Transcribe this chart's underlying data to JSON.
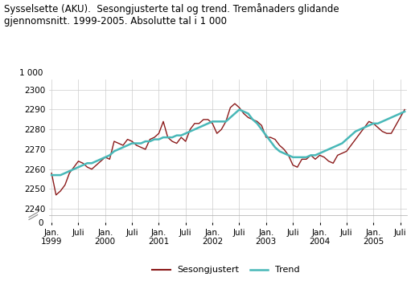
{
  "title": "Sysselsette (AKU).  Sesongjusterte tal og trend. Tremånaders glidande\ngjennomsnitt. 1999-2005. Absolutte tal i 1 000",
  "ylabel_top": "1 000",
  "sesongjustert_color": "#8B1A1A",
  "trend_color": "#48B8B8",
  "legend_sesongjustert": "Sesongjustert",
  "legend_trend": "Trend",
  "background_color": "#ffffff",
  "grid_color": "#cccccc",
  "ylim_main": [
    2237,
    2305
  ],
  "ylim_zero": [
    0,
    10
  ],
  "yticks_main": [
    2240,
    2250,
    2260,
    2270,
    2280,
    2290,
    2300
  ],
  "xtick_positions": [
    0,
    6,
    12,
    18,
    24,
    30,
    36,
    42,
    48,
    54,
    60,
    66,
    72,
    78
  ],
  "xtick_labels": [
    "Jan.\n1999",
    "Juli",
    "Jan.\n2000",
    "Juli",
    "Jan.\n2001",
    "Juli",
    "Jan.\n2002",
    "Juli",
    "Jan.\n2003",
    "Juli",
    "Jan.\n2004",
    "Juli",
    "Jan.\n2005",
    "Juli"
  ],
  "sesongjustert": [
    2258,
    2247,
    2249,
    2252,
    2258,
    2261,
    2264,
    2263,
    2261,
    2260,
    2262,
    2264,
    2266,
    2265,
    2274,
    2273,
    2272,
    2275,
    2274,
    2272,
    2271,
    2270,
    2275,
    2276,
    2278,
    2284,
    2276,
    2274,
    2273,
    2276,
    2274,
    2280,
    2283,
    2283,
    2285,
    2285,
    2283,
    2278,
    2280,
    2284,
    2291,
    2293,
    2291,
    2288,
    2286,
    2285,
    2284,
    2282,
    2276,
    2276,
    2275,
    2272,
    2270,
    2267,
    2262,
    2261,
    2265,
    2265,
    2267,
    2265,
    2267,
    2266,
    2264,
    2263,
    2267,
    2268,
    2269,
    2272,
    2275,
    2278,
    2281,
    2284,
    2283,
    2281,
    2279,
    2278,
    2278,
    2282,
    2286,
    2290
  ],
  "trend": [
    2257,
    2257,
    2257,
    2258,
    2259,
    2260,
    2261,
    2262,
    2263,
    2263,
    2264,
    2265,
    2266,
    2267,
    2269,
    2270,
    2271,
    2272,
    2273,
    2273,
    2273,
    2274,
    2274,
    2275,
    2275,
    2276,
    2276,
    2276,
    2277,
    2277,
    2278,
    2279,
    2280,
    2281,
    2282,
    2283,
    2284,
    2284,
    2284,
    2284,
    2286,
    2288,
    2290,
    2289,
    2288,
    2285,
    2283,
    2280,
    2277,
    2274,
    2271,
    2269,
    2268,
    2267,
    2266,
    2266,
    2266,
    2266,
    2267,
    2267,
    2268,
    2269,
    2270,
    2271,
    2272,
    2273,
    2275,
    2277,
    2279,
    2280,
    2281,
    2282,
    2283,
    2283,
    2284,
    2285,
    2286,
    2287,
    2288,
    2289
  ]
}
